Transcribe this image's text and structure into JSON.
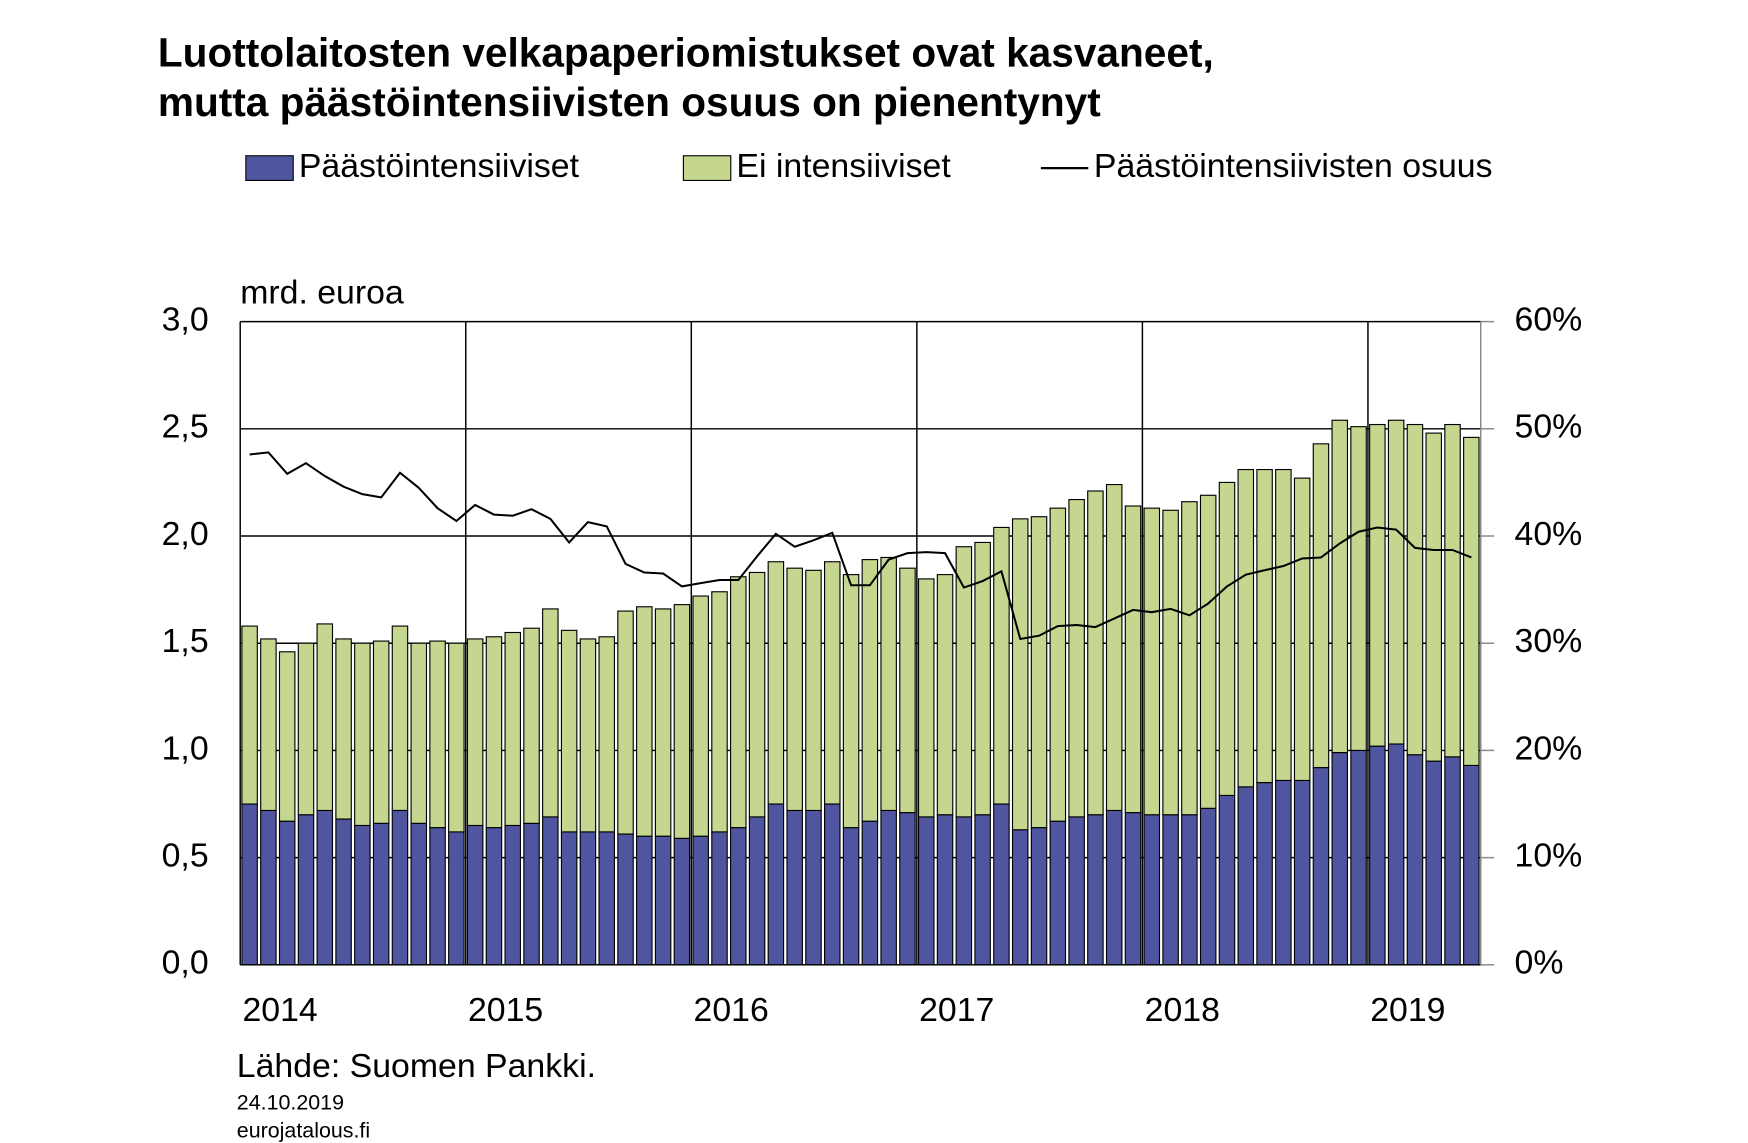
{
  "chart_data": {
    "type": "bar",
    "stacked": true,
    "title": [
      "Luottolaitosten velkapaperiomistukset ovat kasvaneet,",
      "mutta päästöintensiivisten osuus on pienentynyt"
    ],
    "ylabel": "mrd. euroa",
    "source": "Lähde: Suomen Pankki.",
    "date": "24.10.2019",
    "website": "eurojatalous.fi",
    "categories": [
      "2014",
      null,
      null,
      null,
      null,
      null,
      null,
      null,
      null,
      null,
      null,
      null,
      "2015",
      null,
      null,
      null,
      null,
      null,
      null,
      null,
      null,
      null,
      null,
      null,
      "2016",
      null,
      null,
      null,
      null,
      null,
      null,
      null,
      null,
      null,
      null,
      null,
      "2017",
      null,
      null,
      null,
      null,
      null,
      null,
      null,
      null,
      null,
      null,
      null,
      "2018",
      null,
      null,
      null,
      null,
      null,
      null,
      null,
      null,
      null,
      null,
      null,
      "2019",
      null,
      null,
      null,
      null,
      null
    ],
    "series": [
      {
        "name": "Päästöintensiiviset",
        "color": "#4f559f",
        "values": [
          0.75,
          0.72,
          0.67,
          0.7,
          0.72,
          0.68,
          0.65,
          0.66,
          0.72,
          0.66,
          0.64,
          0.62,
          0.65,
          0.64,
          0.65,
          0.66,
          0.69,
          0.62,
          0.62,
          0.62,
          0.61,
          0.6,
          0.6,
          0.59,
          0.6,
          0.62,
          0.64,
          0.69,
          0.75,
          0.72,
          0.72,
          0.75,
          0.64,
          0.67,
          0.72,
          0.71,
          0.69,
          0.7,
          0.69,
          0.7,
          0.75,
          0.63,
          0.64,
          0.67,
          0.69,
          0.7,
          0.72,
          0.71,
          0.7,
          0.7,
          0.7,
          0.73,
          0.79,
          0.83,
          0.85,
          0.86,
          0.86,
          0.92,
          0.99,
          1.0,
          1.02,
          1.03,
          0.98,
          0.95,
          0.97,
          0.93
        ]
      },
      {
        "name": "Ei intensiiviset",
        "color": "#c5d68f",
        "values": [
          0.83,
          0.8,
          0.79,
          0.8,
          0.87,
          0.84,
          0.85,
          0.85,
          0.86,
          0.84,
          0.87,
          0.88,
          0.87,
          0.89,
          0.9,
          0.91,
          0.97,
          0.94,
          0.9,
          0.91,
          1.04,
          1.07,
          1.06,
          1.09,
          1.12,
          1.12,
          1.17,
          1.14,
          1.13,
          1.13,
          1.12,
          1.13,
          1.18,
          1.22,
          1.18,
          1.14,
          1.11,
          1.12,
          1.26,
          1.27,
          1.29,
          1.45,
          1.45,
          1.46,
          1.48,
          1.51,
          1.52,
          1.43,
          1.43,
          1.42,
          1.46,
          1.46,
          1.46,
          1.48,
          1.46,
          1.45,
          1.41,
          1.51,
          1.55,
          1.51,
          1.5,
          1.51,
          1.54,
          1.53,
          1.55,
          1.53
        ]
      },
      {
        "name": "Päästöintensiivisten osuus",
        "color": "#000000",
        "type": "line",
        "axis": "y2",
        "values": [
          47.6,
          47.8,
          45.8,
          46.8,
          45.6,
          44.6,
          43.9,
          43.6,
          45.9,
          44.5,
          42.6,
          41.4,
          42.9,
          42.0,
          41.9,
          42.5,
          41.6,
          39.4,
          41.3,
          40.9,
          37.4,
          36.6,
          36.5,
          35.3,
          35.6,
          35.9,
          35.9,
          38.1,
          40.2,
          39.0,
          39.6,
          40.3,
          35.4,
          35.4,
          37.8,
          38.4,
          38.5,
          38.4,
          35.2,
          35.8,
          36.7,
          30.4,
          30.7,
          31.6,
          31.7,
          31.5,
          32.3,
          33.1,
          32.9,
          33.2,
          32.6,
          33.7,
          35.3,
          36.4,
          36.8,
          37.2,
          37.9,
          38.0,
          39.3,
          40.4,
          40.8,
          40.6,
          38.9,
          38.7,
          38.7,
          38.0
        ]
      }
    ],
    "ylim": [
      0,
      3
    ],
    "yticks": [
      {
        "value": 0,
        "label": "0,0"
      },
      {
        "value": 0.5,
        "label": "0,5"
      },
      {
        "value": 1,
        "label": "1,0"
      },
      {
        "value": 1.5,
        "label": "1,5"
      },
      {
        "value": 2,
        "label": "2,0"
      },
      {
        "value": 2.5,
        "label": "2,5"
      },
      {
        "value": 3,
        "label": "3,0"
      }
    ],
    "y2lim": [
      0,
      60
    ],
    "y2ticks": [
      {
        "value": 0,
        "label": "0%"
      },
      {
        "value": 10,
        "label": "10%"
      },
      {
        "value": 20,
        "label": "20%"
      },
      {
        "value": 30,
        "label": "30%"
      },
      {
        "value": 40,
        "label": "40%"
      },
      {
        "value": 50,
        "label": "50%"
      },
      {
        "value": 60,
        "label": "60%"
      }
    ],
    "grid": true
  }
}
